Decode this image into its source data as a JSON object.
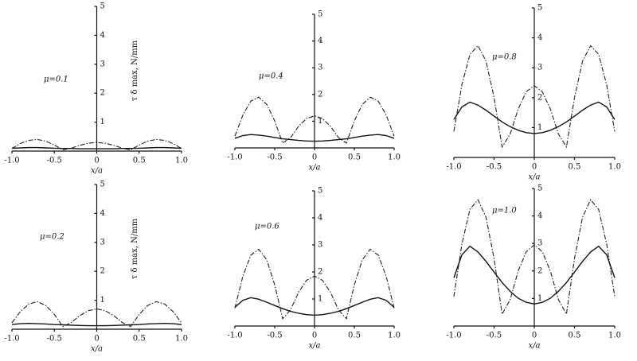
{
  "chart_data": [
    {
      "type": "line",
      "annotation": "μ=0.1",
      "xlabel": "x/a",
      "ylabel": "τ δ max, N/mm",
      "x": [
        -1,
        -0.9,
        -0.8,
        -0.7,
        -0.6,
        -0.5,
        -0.4,
        -0.3,
        -0.2,
        -0.1,
        0,
        0.1,
        0.2,
        0.3,
        0.4,
        0.5,
        0.6,
        0.7,
        0.8,
        0.9,
        1
      ],
      "xlim": [
        -1,
        1
      ],
      "ylim": [
        0,
        5
      ],
      "xticks": [
        {
          "value": -1,
          "label": "-1.0"
        },
        -0.5,
        0,
        0.5,
        {
          "value": 1,
          "label": "1.0"
        }
      ],
      "yticks": [
        1,
        2,
        3,
        4,
        5
      ],
      "series": [
        {
          "color": "#222",
          "dash": true,
          "values": [
            0.09,
            0.26,
            0.37,
            0.4,
            0.34,
            0.21,
            0.04,
            0.1,
            0.2,
            0.27,
            0.3,
            0.27,
            0.2,
            0.1,
            0.04,
            0.21,
            0.34,
            0.4,
            0.37,
            0.26,
            0.09
          ]
        },
        {
          "color": "#111",
          "dash": false,
          "values": [
            0.1,
            0.11,
            0.12,
            0.12,
            0.11,
            0.1,
            0.09,
            0.09,
            0.08,
            0.08,
            0.08,
            0.08,
            0.08,
            0.09,
            0.09,
            0.1,
            0.11,
            0.12,
            0.12,
            0.11,
            0.1
          ]
        }
      ]
    },
    {
      "type": "line",
      "annotation": "μ=0.4",
      "xlabel": "x/a",
      "x": [
        -1,
        -0.9,
        -0.8,
        -0.7,
        -0.6,
        -0.5,
        -0.4,
        -0.3,
        -0.2,
        -0.1,
        0,
        0.1,
        0.2,
        0.3,
        0.4,
        0.5,
        0.6,
        0.7,
        0.8,
        0.9,
        1
      ],
      "xlim": [
        -1,
        1
      ],
      "ylim": [
        0,
        5
      ],
      "xticks": [
        {
          "value": -1,
          "label": "-1.0"
        },
        -0.5,
        0,
        0.5,
        {
          "value": 1,
          "label": "1.0"
        }
      ],
      "yticks": [
        1,
        2,
        3,
        4,
        5
      ],
      "series": [
        {
          "color": "#222",
          "dash": true,
          "values": [
            0.44,
            1.23,
            1.75,
            1.9,
            1.63,
            1.01,
            0.18,
            0.39,
            0.81,
            1.1,
            1.2,
            1.1,
            0.81,
            0.39,
            0.18,
            1.01,
            1.63,
            1.9,
            1.75,
            1.23,
            0.44
          ]
        },
        {
          "color": "#111",
          "dash": false,
          "values": [
            0.36,
            0.46,
            0.5,
            0.48,
            0.44,
            0.39,
            0.34,
            0.31,
            0.28,
            0.26,
            0.25,
            0.26,
            0.28,
            0.31,
            0.34,
            0.39,
            0.44,
            0.48,
            0.5,
            0.46,
            0.36
          ]
        }
      ]
    },
    {
      "type": "line",
      "annotation": "μ=0.8",
      "xlabel": "x/a",
      "x": [
        -1,
        -0.9,
        -0.8,
        -0.7,
        -0.6,
        -0.5,
        -0.4,
        -0.3,
        -0.2,
        -0.1,
        0,
        0.1,
        0.2,
        0.3,
        0.4,
        0.5,
        0.6,
        0.7,
        0.8,
        0.9,
        1
      ],
      "xlim": [
        -1,
        1
      ],
      "ylim": [
        0,
        5
      ],
      "xticks": [
        {
          "value": -1,
          "label": "-1.0"
        },
        -0.5,
        0,
        0.5,
        {
          "value": 1,
          "label": "1.0"
        }
      ],
      "yticks": [
        1,
        2,
        3,
        4,
        5
      ],
      "series": [
        {
          "color": "#222",
          "dash": true,
          "values": [
            0.87,
            2.43,
            3.45,
            3.74,
            3.22,
            2.0,
            0.35,
            0.78,
            1.62,
            2.2,
            2.4,
            2.2,
            1.62,
            0.78,
            0.35,
            2.0,
            3.22,
            3.74,
            3.45,
            2.43,
            0.87
          ]
        },
        {
          "color": "#111",
          "dash": false,
          "values": [
            1.27,
            1.69,
            1.85,
            1.75,
            1.58,
            1.38,
            1.19,
            1.03,
            0.91,
            0.83,
            0.8,
            0.83,
            0.91,
            1.03,
            1.19,
            1.38,
            1.58,
            1.75,
            1.85,
            1.69,
            1.27
          ]
        }
      ]
    },
    {
      "type": "line",
      "annotation": "μ=0.2",
      "xlabel": "x/a",
      "ylabel": "τ δ max, N/mm",
      "x": [
        -1,
        -0.9,
        -0.8,
        -0.7,
        -0.6,
        -0.5,
        -0.4,
        -0.3,
        -0.2,
        -0.1,
        0,
        0.1,
        0.2,
        0.3,
        0.4,
        0.5,
        0.6,
        0.7,
        0.8,
        0.9,
        1
      ],
      "xlim": [
        -1,
        1
      ],
      "ylim": [
        0,
        5
      ],
      "xticks": [
        {
          "value": -1,
          "label": "-1.0"
        },
        -0.5,
        0,
        0.5,
        {
          "value": 1,
          "label": "1.0"
        }
      ],
      "yticks": [
        1,
        2,
        3,
        4,
        5
      ],
      "series": [
        {
          "color": "#222",
          "dash": true,
          "values": [
            0.22,
            0.61,
            0.87,
            0.95,
            0.82,
            0.51,
            0.09,
            0.23,
            0.47,
            0.64,
            0.7,
            0.64,
            0.47,
            0.23,
            0.09,
            0.51,
            0.82,
            0.95,
            0.87,
            0.61,
            0.22
          ]
        },
        {
          "color": "#111",
          "dash": false,
          "values": [
            0.16,
            0.19,
            0.2,
            0.19,
            0.18,
            0.16,
            0.15,
            0.14,
            0.13,
            0.12,
            0.12,
            0.12,
            0.13,
            0.14,
            0.15,
            0.16,
            0.18,
            0.19,
            0.2,
            0.19,
            0.16
          ]
        }
      ]
    },
    {
      "type": "line",
      "annotation": "μ=0.6",
      "xlabel": "x/a",
      "x": [
        -1,
        -0.9,
        -0.8,
        -0.7,
        -0.6,
        -0.5,
        -0.4,
        -0.3,
        -0.2,
        -0.1,
        0,
        0.1,
        0.2,
        0.3,
        0.4,
        0.5,
        0.6,
        0.7,
        0.8,
        0.9,
        1
      ],
      "xlim": [
        -1,
        1
      ],
      "ylim": [
        0,
        5
      ],
      "xticks": [
        {
          "value": -1,
          "label": "-1.0"
        },
        -0.5,
        0,
        0.5,
        {
          "value": 1,
          "label": "1.0"
        }
      ],
      "yticks": [
        1,
        2,
        3,
        4,
        5
      ],
      "series": [
        {
          "color": "#222",
          "dash": true,
          "values": [
            0.66,
            1.84,
            2.62,
            2.84,
            2.45,
            1.52,
            0.27,
            0.6,
            1.25,
            1.69,
            1.85,
            1.69,
            1.25,
            0.6,
            0.27,
            1.52,
            2.45,
            2.84,
            2.62,
            1.84,
            0.66
          ]
        },
        {
          "color": "#111",
          "dash": false,
          "values": [
            0.69,
            0.95,
            1.05,
            0.99,
            0.88,
            0.76,
            0.64,
            0.54,
            0.47,
            0.42,
            0.4,
            0.42,
            0.47,
            0.54,
            0.64,
            0.76,
            0.88,
            0.99,
            1.05,
            0.95,
            0.69
          ]
        }
      ]
    },
    {
      "type": "line",
      "annotation": "μ=1.0",
      "xlabel": "x/a",
      "x": [
        -1,
        -0.9,
        -0.8,
        -0.7,
        -0.6,
        -0.5,
        -0.4,
        -0.3,
        -0.2,
        -0.1,
        0,
        0.1,
        0.2,
        0.3,
        0.4,
        0.5,
        0.6,
        0.7,
        0.8,
        0.9,
        1
      ],
      "xlim": [
        -1,
        1
      ],
      "ylim": [
        0,
        5
      ],
      "xticks": [
        {
          "value": -1,
          "label": "-1.0"
        },
        -0.5,
        0,
        0.5,
        {
          "value": 1,
          "label": "1.0"
        }
      ],
      "yticks": [
        1,
        2,
        3,
        4,
        5
      ],
      "series": [
        {
          "color": "#222",
          "dash": true,
          "values": [
            1.07,
            2.98,
            4.24,
            4.59,
            3.95,
            2.45,
            0.43,
            0.96,
            2.0,
            2.7,
            2.95,
            2.7,
            2.0,
            0.96,
            0.43,
            2.45,
            3.95,
            4.59,
            4.24,
            2.98,
            1.07
          ]
        },
        {
          "color": "#111",
          "dash": false,
          "values": [
            1.75,
            2.59,
            2.9,
            2.69,
            2.35,
            1.96,
            1.58,
            1.26,
            1.01,
            0.86,
            0.8,
            0.86,
            1.01,
            1.26,
            1.58,
            1.96,
            2.35,
            2.69,
            2.9,
            2.59,
            1.75
          ]
        }
      ]
    }
  ]
}
